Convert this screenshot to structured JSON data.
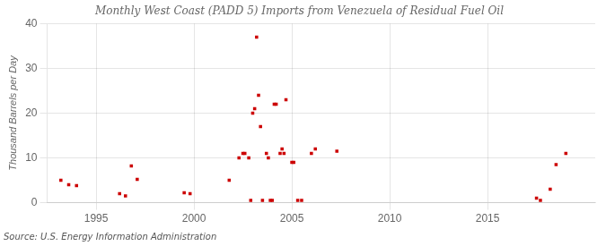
{
  "chart_data": {
    "type": "scatter",
    "title": "Monthly West Coast (PADD 5) Imports from Venezuela of Residual Fuel Oil",
    "ylabel": "Thousand Barrels per Day",
    "annotation": "Source: U.S. Energy Information Administration",
    "x": [
      1993.2,
      1993.6,
      1994.0,
      1996.2,
      1996.5,
      1996.8,
      1997.1,
      1999.5,
      1999.8,
      2001.8,
      2002.3,
      2002.5,
      2002.6,
      2002.8,
      2002.9,
      2003.0,
      2003.1,
      2003.2,
      2003.3,
      2003.4,
      2003.5,
      2003.7,
      2003.8,
      2003.9,
      2004.0,
      2004.1,
      2004.2,
      2004.4,
      2004.5,
      2004.6,
      2004.7,
      2005.0,
      2005.1,
      2005.3,
      2005.5,
      2006.0,
      2006.2,
      2007.3,
      2017.5,
      2017.7,
      2018.2,
      2018.5,
      2019.0
    ],
    "values": [
      5.0,
      4.0,
      3.8,
      2.0,
      1.5,
      8.2,
      5.2,
      2.2,
      2.0,
      5.0,
      10.0,
      11.0,
      11.0,
      10.0,
      0.5,
      20.0,
      21.0,
      37.0,
      24.0,
      17.0,
      0.5,
      11.0,
      10.0,
      0.5,
      0.5,
      22.0,
      22.0,
      11.0,
      12.0,
      11.0,
      23.0,
      9.0,
      9.0,
      0.5,
      0.5,
      11.0,
      12.0,
      11.5,
      1.0,
      0.5,
      3.0,
      8.5,
      11.0
    ],
    "color": "#cc0000",
    "marker": "square",
    "xlim": [
      1992.5,
      2020.5
    ],
    "ylim": [
      0,
      40
    ],
    "xticks": [
      1995,
      2000,
      2005,
      2010,
      2015
    ],
    "yticks": [
      0,
      10,
      20,
      30,
      40
    ],
    "grid": true
  }
}
